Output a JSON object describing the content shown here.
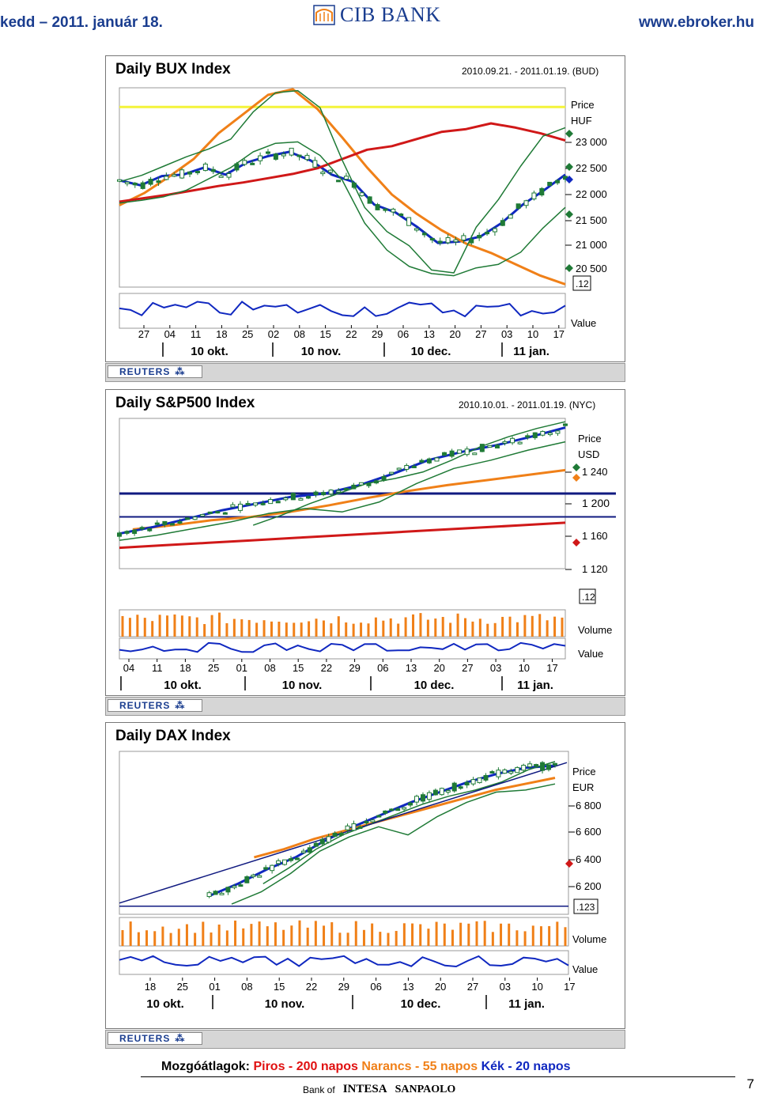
{
  "header": {
    "date": "kedd – 2011. január 18.",
    "bank": "CIB BANK",
    "url": "www.ebroker.hu"
  },
  "colors": {
    "ma200": "#d01818",
    "ma55": "#f08018",
    "ma20": "#1028c0",
    "bollinger": "#1f7a36",
    "candle": "#1f7a36",
    "threshold_bux": "#f4f43a",
    "brand": "#1a3d8f"
  },
  "charts": [
    {
      "id": "bux",
      "title": "Daily BUX Index",
      "date_range": "2010.09.21. - 2011.01.19. (BUD)",
      "price_label": "Price",
      "currency": "HUF",
      "price_ticks": [
        "23 000",
        "22 500",
        "22 000",
        "21 500",
        "21 000",
        "20 500"
      ],
      "cursor_label": ".12",
      "value_label": "Value",
      "volume_label": "",
      "day_ticks": [
        "27",
        "04",
        "11",
        "18",
        "25",
        "02",
        "08",
        "15",
        "22",
        "29",
        "06",
        "13",
        "20",
        "27",
        "03",
        "10",
        "17"
      ],
      "month_labels": [
        "10 okt.",
        "10 nov.",
        "10 dec.",
        "11 jan."
      ],
      "reuters": "REUTERS"
    },
    {
      "id": "spx",
      "title": "Daily S&P500 Index",
      "date_range": "2010.10.01. - 2011.01.19. (NYC)",
      "price_label": "Price",
      "currency": "USD",
      "price_ticks": [
        "1 240",
        "1 200",
        "1 160",
        "1 120"
      ],
      "cursor_label": ".12",
      "value_label": "Value",
      "volume_label": "Volume",
      "day_ticks": [
        "04",
        "11",
        "18",
        "25",
        "01",
        "08",
        "15",
        "22",
        "29",
        "06",
        "13",
        "20",
        "27",
        "03",
        "10",
        "17"
      ],
      "month_labels": [
        "10 okt.",
        "10 nov.",
        "10 dec.",
        "11 jan."
      ],
      "reuters": "REUTERS"
    },
    {
      "id": "dax",
      "title": "Daily DAX Index",
      "date_range": "",
      "price_label": "Price",
      "currency": "EUR",
      "price_ticks": [
        "6 800",
        "6 600",
        "6 400",
        "6 200"
      ],
      "cursor_label": ".123",
      "value_label": "Value",
      "volume_label": "Volume",
      "day_ticks": [
        "18",
        "25",
        "01",
        "08",
        "15",
        "22",
        "29",
        "06",
        "13",
        "20",
        "27",
        "03",
        "10",
        "17"
      ],
      "month_labels": [
        "10 okt.",
        "10 nov.",
        "10 dec.",
        "11 jan."
      ],
      "reuters": "REUTERS"
    }
  ],
  "chart_data": [
    {
      "type": "line",
      "title": "Daily BUX Index",
      "ylabel": "Price HUF",
      "ylim": [
        20400,
        23200
      ],
      "threshold_line": 22930,
      "series": [
        {
          "values": [
            21900,
            21830,
            21960,
            21980,
            22080,
            21980,
            22150,
            22240,
            22300,
            22180,
            21980,
            21880,
            21560,
            21450,
            21250,
            21020,
            21040,
            21110,
            21300,
            21560,
            21760,
            21980
          ]
        },
        {
          "values": [
            21550,
            21720,
            21950,
            22200,
            22560,
            22830,
            23100,
            23180,
            22900,
            22500,
            22080,
            21700,
            21430,
            21200,
            21010,
            20880,
            20720,
            20560,
            20440
          ]
        },
        {
          "values": [
            21600,
            21650,
            21700,
            21760,
            21820,
            21870,
            21930,
            21990,
            22070,
            22200,
            22330,
            22380,
            22480,
            22580,
            22620,
            22700,
            22640,
            22560,
            22460
          ]
        },
        {
          "values": [
            21880,
            21970,
            22100,
            22230,
            22340,
            22480,
            22860,
            23130,
            23160,
            22920,
            22180,
            21520,
            21180,
            20980,
            20640,
            20600,
            21240,
            21630,
            22100,
            22520,
            22640
          ]
        },
        {
          "values": [
            21580,
            21620,
            21670,
            21760,
            21920,
            22080,
            22300,
            22420,
            22440,
            22250,
            21900,
            21300,
            20920,
            20690,
            20590,
            20560,
            20670,
            20720,
            20890,
            21230,
            21520
          ]
        }
      ]
    },
    {
      "type": "line",
      "title": "Daily S&P500 Index",
      "ylabel": "Price USD",
      "ylim": [
        1110,
        1290
      ],
      "threshold_lines": [
        1200,
        1172
      ],
      "series": [
        {
          "values": [
            1135,
            1138,
            1141,
            1144,
            1147,
            1150,
            1153,
            1156,
            1159,
            1162,
            1165
          ]
        },
        {
          "values": [
            1157,
            1162,
            1168,
            1172,
            1178,
            1186,
            1195,
            1203,
            1210,
            1216,
            1222,
            1228
          ]
        },
        {
          "values": [
            1152,
            1160,
            1170,
            1180,
            1188,
            1196,
            1200,
            1210,
            1224,
            1240,
            1250,
            1258,
            1268,
            1279
          ]
        },
        {
          "values": [
            1162,
            1174,
            1188,
            1200,
            1212,
            1218,
            1226,
            1240,
            1256,
            1268,
            1278,
            1286
          ]
        },
        {
          "values": [
            1144,
            1150,
            1158,
            1166,
            1176,
            1182,
            1178,
            1190,
            1212,
            1230,
            1240,
            1252,
            1262
          ]
        }
      ]
    },
    {
      "type": "line",
      "title": "Daily DAX Index",
      "ylabel": "Price EUR",
      "ylim": [
        6150,
        6950
      ],
      "trendlines": true,
      "series": [
        {
          "values": [
            6240,
            6300,
            6370,
            6430,
            6510,
            6580,
            6640,
            6700,
            6750,
            6800,
            6840,
            6870,
            6880
          ]
        },
        {
          "values": [
            6430,
            6470,
            6520,
            6560,
            6600,
            6640,
            6680,
            6720,
            6760,
            6790,
            6820
          ]
        },
        {
          "values": [
            6300,
            6380,
            6470,
            6540,
            6590,
            6640,
            6690,
            6730,
            6760,
            6800,
            6860,
            6900
          ]
        },
        {
          "values": [
            6200,
            6260,
            6350,
            6460,
            6530,
            6580,
            6540,
            6630,
            6700,
            6750,
            6760,
            6790
          ]
        }
      ]
    }
  ],
  "legend": {
    "prefix": "Mozgóátlagok:",
    "red": "Piros - 200 napos",
    "orange": "Narancs - 55 napos",
    "blue": "Kék - 20 napos"
  },
  "bottom": {
    "bank_of": "Bank of",
    "intesa": "INTESA",
    "sanpaolo": "SANPAOLO"
  },
  "page_number": "7"
}
